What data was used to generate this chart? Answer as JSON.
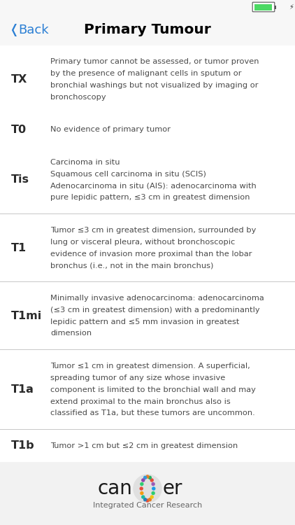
{
  "title": "Primary Tumour",
  "back_color": "#2B7FD4",
  "bg_color": "#FFFFFF",
  "separator_color": "#C8C8C8",
  "label_color": "#2A2A2A",
  "desc_color": "#4A4A4A",
  "footer_bg": "#F2F2F2",
  "status_bar_color": "#4CD964",
  "rows": [
    {
      "label": "TX",
      "desc": "Primary tumor cannot be assessed, or tumor proven\nby the presence of malignant cells in sputum or\nbronchial washings but not visualized by imaging or\nbronchoscopy"
    },
    {
      "label": "T0",
      "desc": "No evidence of primary tumor"
    },
    {
      "label": "Tis",
      "desc": "Carcinoma in situ\nSquamous cell carcinoma in situ (SCIS)\nAdenocarcinoma in situ (AIS): adenocarcinoma with\npure lepidic pattern, ≤3 cm in greatest dimension"
    },
    {
      "label": "T1",
      "desc": "Tumor ≤3 cm in greatest dimension, surrounded by\nlung or visceral pleura, without bronchoscopic\nevidence of invasion more proximal than the lobar\nbronchus (i.e., not in the main bronchus)"
    },
    {
      "label": "T1mi",
      "desc": "Minimally invasive adenocarcinoma: adenocarcinoma\n(≤3 cm in greatest dimension) with a predominantly\nlepidic pattern and ≤5 mm invasion in greatest\ndimension"
    },
    {
      "label": "T1a",
      "desc": "Tumor ≤1 cm in greatest dimension. A superficial,\nspreading tumor of any size whose invasive\ncomponent is limited to the bronchial wall and may\nextend proximal to the main bronchus also is\nclassified as T1a, but these tumors are uncommon."
    },
    {
      "label": "T1b",
      "desc": "Tumor >1 cm but ≤2 cm in greatest dimension"
    }
  ],
  "footer_text": "Integrated Cancer Research",
  "dna_colors": [
    "#E74C3C",
    "#E67E22",
    "#F1C40F",
    "#2ECC71",
    "#1A9BE8",
    "#9B59B6",
    "#E74C3C",
    "#27AE60",
    "#E67E22",
    "#3498DB",
    "#8E44AD",
    "#2ECC71",
    "#E74C3C",
    "#F39C12",
    "#1ABC9C",
    "#2980B9"
  ]
}
